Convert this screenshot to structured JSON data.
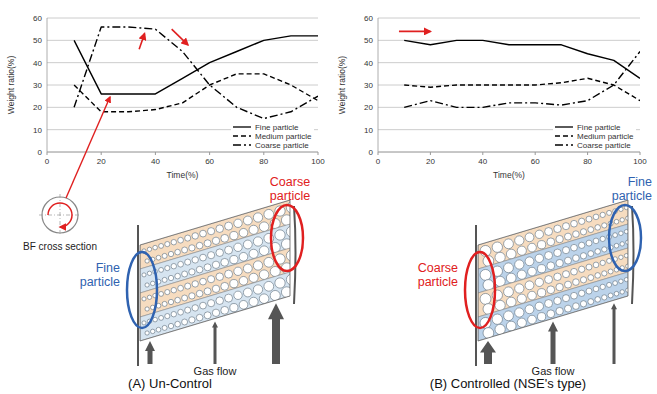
{
  "chart_data": [
    {
      "type": "line",
      "x_label": "Time(%)",
      "y_label": "Weight ratio(%)",
      "x": [
        10,
        20,
        30,
        40,
        50,
        60,
        70,
        80,
        90,
        100
      ],
      "xlim": [
        0,
        100
      ],
      "xticks": [
        0,
        20,
        40,
        60,
        80,
        100
      ],
      "ylim": [
        0,
        60
      ],
      "yticks": [
        0,
        10,
        20,
        30,
        40,
        50,
        60
      ],
      "grid": true,
      "legend": "lower right",
      "series": [
        {
          "name": "Fine particle",
          "color": "#000000",
          "line_style": "solid",
          "values": [
            50,
            26,
            26,
            26,
            33,
            40,
            45,
            50,
            52,
            52
          ]
        },
        {
          "name": "Medium particle",
          "color": "#000000",
          "line_style": "dashed",
          "values": [
            30,
            18,
            18,
            19,
            22,
            30,
            35,
            35,
            30,
            23
          ]
        },
        {
          "name": "Coarse particle",
          "color": "#000000",
          "line_style": "dashdot",
          "values": [
            20,
            56,
            56,
            55,
            45,
            30,
            20,
            15,
            18,
            25
          ]
        }
      ]
    },
    {
      "type": "line",
      "x_label": "Time(%)",
      "y_label": "Weight ratio(%)",
      "x": [
        10,
        20,
        30,
        40,
        50,
        60,
        70,
        80,
        90,
        100
      ],
      "xlim": [
        0,
        100
      ],
      "xticks": [
        0,
        20,
        40,
        60,
        80,
        100
      ],
      "ylim": [
        0,
        60
      ],
      "yticks": [
        0,
        10,
        20,
        30,
        40,
        50,
        60
      ],
      "grid": true,
      "legend": "lower right",
      "series": [
        {
          "name": "Fine particle",
          "color": "#000000",
          "line_style": "solid",
          "values": [
            50,
            48,
            50,
            50,
            48,
            48,
            48,
            44,
            41,
            33
          ]
        },
        {
          "name": "Medium particle",
          "color": "#000000",
          "line_style": "dashed",
          "values": [
            30,
            29,
            30,
            30,
            30,
            30,
            31,
            33,
            30,
            23
          ]
        },
        {
          "name": "Coarse particle",
          "color": "#000000",
          "line_style": "dashdot",
          "values": [
            20,
            23,
            20,
            20,
            22,
            22,
            21,
            23,
            30,
            45
          ]
        }
      ]
    }
  ],
  "diagrams": [
    {
      "caption": "(A) Un-Control",
      "left_label": "Fine particle",
      "right_label": "Coarse particle",
      "flow_label": "Gas flow",
      "inset_label": "BF cross section"
    },
    {
      "caption": "(B) Controlled (NSE's type)",
      "left_label": "Coarse particle",
      "right_label": "Fine particle",
      "flow_label": "Gas flow"
    }
  ]
}
